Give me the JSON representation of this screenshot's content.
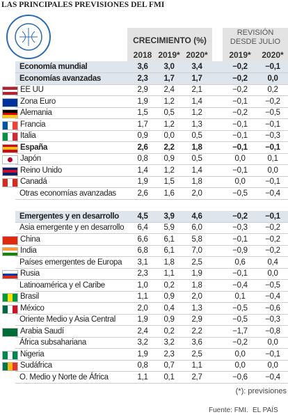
{
  "title": "LAS PRINCIPALES PREVISIONES DEL FMI",
  "header": {
    "growth": "CRECIMIENTO (%)",
    "revision": [
      "REVISIÓN",
      "DESDE JULIO"
    ],
    "columns": [
      "2018",
      "2019*",
      "2020*",
      "2019*",
      "2020*"
    ]
  },
  "table": {
    "rows": [
      [
        "Economía mundial",
        "3,6",
        "3,0",
        "3,4",
        "−0,2",
        "−0,1"
      ],
      [
        "Economías avanzadas",
        "2,3",
        "1,7",
        "1,7",
        "−0,2",
        "0,0"
      ],
      [
        "EE UU",
        "2,9",
        "2,4",
        "2,1",
        "−0,2",
        "0,2"
      ],
      [
        "Zona Euro",
        "1,9",
        "1,2",
        "1,4",
        "−0,1",
        "−0,2"
      ],
      [
        "Alemania",
        "1,5",
        "0,5",
        "1,2",
        "−0,2",
        "−0,5"
      ],
      [
        "Francia",
        "1,7",
        "1,2",
        "1,3",
        "−0,1",
        "−0,1"
      ],
      [
        "Italia",
        "0,9",
        "0,0",
        "0,5",
        "−0,1",
        "−0,3"
      ],
      [
        "España",
        "2,6",
        "2,2",
        "1,8",
        "−0,1",
        "−0,1"
      ],
      [
        "Japón",
        "0,8",
        "0,9",
        "0,5",
        "0,0",
        "0,1"
      ],
      [
        "Reino Unido",
        "1,4",
        "1,2",
        "1,4",
        "−0,1",
        "0,0"
      ],
      [
        "Canadá",
        "1,9",
        "1,5",
        "1,8",
        "0,0",
        "−0,1"
      ],
      [
        "Otras economías avanzadas",
        "2,6",
        "1,6",
        "2,0",
        "−0,5",
        "−0,4"
      ],
      [
        "Emergentes y en desarrollo",
        "4,5",
        "3,9",
        "4,6",
        "−0,2",
        "−0,1"
      ],
      [
        "Asia emergente y en desarrollo",
        "6,4",
        "5,9",
        "6,0",
        "−0,3",
        "−0,2"
      ],
      [
        "China",
        "6,6",
        "6,1",
        "5,8",
        "−0,1",
        "−0,2"
      ],
      [
        "India",
        "6,8",
        "6,1",
        "7,0",
        "−0,9",
        "−0,2"
      ],
      [
        "Países emergentes de Europa",
        "3,1",
        "1,8",
        "2,5",
        "0,6",
        "0,4"
      ],
      [
        "Rusia",
        "2,3",
        "1,1",
        "1,9",
        "−0,1",
        "0,0"
      ],
      [
        "Latinoamérica y el Caribe",
        "1,0",
        "0,2",
        "1,8",
        "−0,4",
        "−0,5"
      ],
      [
        "Brasil",
        "1,1",
        "0,9",
        "2,0",
        "0,1",
        "−0,4"
      ],
      [
        "México",
        "2,0",
        "0,4",
        "1,3",
        "−0,5",
        "−0,6"
      ],
      [
        "Oriente Medio y Asia Central",
        "1,9",
        "0,9",
        "2,9",
        "−0,5",
        "−0,3"
      ],
      [
        "Arabia Saudí",
        "2,4",
        "0,2",
        "2,2",
        "−1,7",
        "−0,8"
      ],
      [
        "África subsahariana",
        "3,2",
        "3,2",
        "3,6",
        "−0,2",
        "0,0"
      ],
      [
        "Nigeria",
        "1,9",
        "2,3",
        "2,5",
        "0,0",
        "−0,1"
      ],
      [
        "Sudáfrica",
        "0,8",
        "0,7",
        "1,1",
        "0,0",
        "0,0"
      ],
      [
        "O. Medio y Norte de África",
        "1,1",
        "0,1",
        "2,7",
        "−0,6",
        "−0,4"
      ]
    ]
  },
  "footer": {
    "note": "(*): previsiones",
    "source": "Fuente: FMI.",
    "brand": "EL PAÍS"
  }
}
